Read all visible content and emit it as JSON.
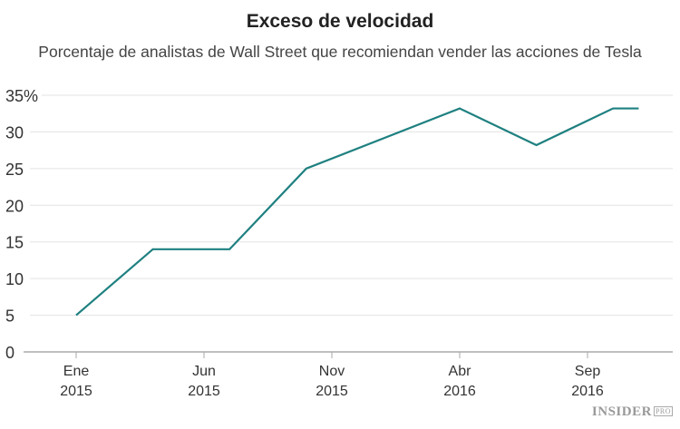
{
  "chart_data": {
    "type": "line",
    "title": "Exceso de velocidad",
    "subtitle": "Porcentaje de analistas de Wall Street que recomiendan vender las acciones de Tesla",
    "xlabel": "",
    "ylabel": "",
    "ylim": [
      0,
      35
    ],
    "xlim": [
      "2014-12",
      "2016-12"
    ],
    "grid": true,
    "yticks": [
      {
        "value": 0,
        "label": "0"
      },
      {
        "value": 5,
        "label": "5"
      },
      {
        "value": 10,
        "label": "10"
      },
      {
        "value": 15,
        "label": "15"
      },
      {
        "value": 20,
        "label": "20"
      },
      {
        "value": 25,
        "label": "25"
      },
      {
        "value": 30,
        "label": "30"
      },
      {
        "value": 35,
        "label": "35%"
      }
    ],
    "xticks": [
      {
        "date": "2015-01",
        "label1": "Ene",
        "label2": "2015"
      },
      {
        "date": "2015-06",
        "label1": "Jun",
        "label2": "2015"
      },
      {
        "date": "2015-11",
        "label1": "Nov",
        "label2": "2015"
      },
      {
        "date": "2016-04",
        "label1": "Abr",
        "label2": "2016"
      },
      {
        "date": "2016-09",
        "label1": "Sep",
        "label2": "2016"
      }
    ],
    "series": [
      {
        "color": "#1f8080",
        "points": [
          {
            "x": "2015-01",
            "y": 5
          },
          {
            "x": "2015-04",
            "y": 14
          },
          {
            "x": "2015-07",
            "y": 14
          },
          {
            "x": "2015-10",
            "y": 25
          },
          {
            "x": "2016-04",
            "y": 33.2
          },
          {
            "x": "2016-07",
            "y": 28.2
          },
          {
            "x": "2016-10",
            "y": 33.2
          },
          {
            "x": "2016-11",
            "y": 33.2
          }
        ]
      }
    ]
  },
  "logo": {
    "text": "INSIDER",
    "badge": "PRO"
  }
}
